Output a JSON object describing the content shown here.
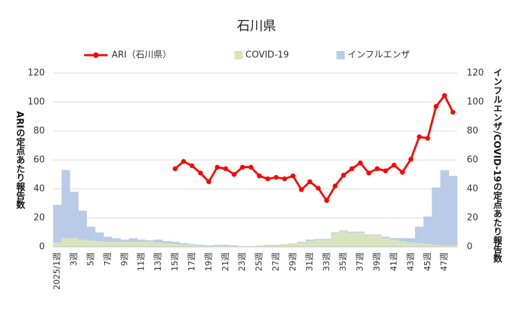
{
  "chart_data": {
    "type": "bar",
    "title": "石川県",
    "y_label": "ARIの定点あたり報告数",
    "y2_label": "インフルエンザ/COVID-19の定点あたり報告数",
    "categories": [
      "2025/1週",
      null,
      "3週",
      null,
      "5週",
      null,
      "7週",
      null,
      "9週",
      null,
      "11週",
      null,
      "13週",
      null,
      "15週",
      null,
      "17週",
      null,
      "19週",
      null,
      "21週",
      null,
      "23週",
      null,
      "25週",
      null,
      "27週",
      null,
      "29週",
      null,
      "31週",
      null,
      "33週",
      null,
      "35週",
      null,
      "37週",
      null,
      "39週",
      null,
      "41週",
      null,
      "43週",
      null,
      "45週",
      null,
      "47週",
      null
    ],
    "ylim": [
      0,
      120
    ],
    "yticks": [
      0,
      20,
      40,
      60,
      80,
      100,
      120
    ],
    "y2lim": [
      0,
      120
    ],
    "y2ticks": [
      0,
      20,
      40,
      60,
      80,
      100,
      120
    ],
    "grid": true,
    "stacked": true,
    "series": [
      {
        "name": "ARI（石川県）",
        "type": "line",
        "color": "#ff0000",
        "values": [
          null,
          null,
          null,
          null,
          null,
          null,
          null,
          null,
          null,
          null,
          null,
          null,
          null,
          null,
          54,
          59,
          56,
          51,
          45,
          55,
          54,
          50,
          55,
          55,
          49,
          47,
          48,
          47,
          49,
          39.5,
          45,
          40.5,
          32,
          42,
          49.5,
          54,
          58,
          51,
          54,
          52.5,
          56.5,
          51.5,
          60.5,
          76,
          75,
          97,
          104.5,
          93
        ]
      },
      {
        "name": "COVID-19",
        "type": "bar",
        "axis": "y2",
        "color": "#d7e4bd",
        "values": [
          3,
          6,
          6,
          5,
          4.5,
          4,
          3.5,
          3.5,
          3.5,
          3.5,
          3.5,
          3.5,
          3,
          2.5,
          2,
          1.5,
          1.5,
          1,
          0.5,
          1,
          1,
          0.5,
          0.5,
          0.5,
          1,
          1.5,
          1.5,
          2,
          2.5,
          3,
          4,
          5,
          5,
          9.5,
          11,
          10,
          10,
          8,
          8,
          6,
          5,
          4,
          3,
          2.5,
          2,
          1.5,
          1,
          1
        ]
      },
      {
        "name": "インフルエンザ",
        "type": "bar",
        "axis": "y2",
        "color": "#b9cbe6",
        "values": [
          26,
          47,
          32,
          20,
          9.5,
          6,
          3.5,
          2.5,
          1.5,
          2.5,
          1.5,
          1,
          2,
          1.5,
          1.5,
          1,
          0.5,
          0.5,
          0.5,
          0.5,
          0.5,
          0.5,
          0,
          0,
          0,
          0,
          0,
          0,
          0,
          0.5,
          1,
          0.5,
          0.5,
          0.5,
          0.5,
          0.5,
          0.5,
          0.5,
          0.5,
          1,
          1,
          2,
          3,
          11.5,
          19,
          39.5,
          52,
          48
        ]
      }
    ],
    "legend": "top"
  }
}
